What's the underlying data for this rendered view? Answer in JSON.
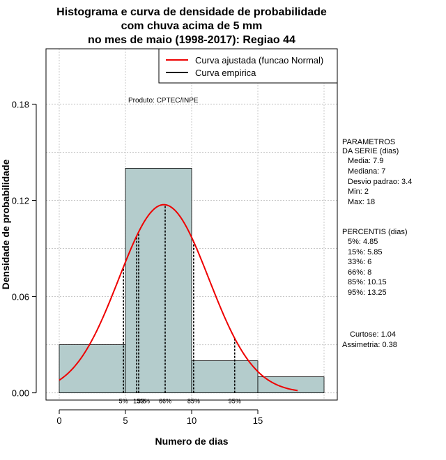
{
  "chart_data": {
    "type": "bar",
    "title_lines": [
      "Histograma e curva de densidade de probabilidade",
      "com chuva acima de 5 mm",
      "no mes de maio (1998-2017): Regiao 44"
    ],
    "xlabel": "Numero de dias",
    "ylabel": "Densidade de probabilidade",
    "xlim": [
      -1,
      21
    ],
    "ylim": [
      -0.0045,
      0.2145
    ],
    "x_ticks": [
      0,
      5,
      10,
      15
    ],
    "y_ticks": [
      0.0,
      0.06,
      0.12,
      0.18
    ],
    "y_tick_labels": [
      "0.00",
      "0.06",
      "0.12",
      "0.18"
    ],
    "grid": true,
    "bins": [
      {
        "from": 0,
        "to": 5,
        "density": 0.03
      },
      {
        "from": 5,
        "to": 10,
        "density": 0.14
      },
      {
        "from": 10,
        "to": 15,
        "density": 0.02
      },
      {
        "from": 15,
        "to": 20,
        "density": 0.01
      }
    ],
    "normal_fit": {
      "mean": 7.9,
      "sd": 3.4,
      "x_from": 0,
      "x_to": 18,
      "color": "#ee0000"
    },
    "percentile_lines": [
      {
        "label": "5%",
        "x": 4.85
      },
      {
        "label": "15%",
        "x": 5.85
      },
      {
        "label": "33%",
        "x": 6
      },
      {
        "label": "66%",
        "x": 8
      },
      {
        "label": "85%",
        "x": 10.15
      },
      {
        "label": "95%",
        "x": 13.25
      }
    ],
    "legend": [
      {
        "label": "Curva ajustada (funcao Normal)",
        "color": "#ee0000"
      },
      {
        "label": "Curva empirica",
        "color": "#000000"
      }
    ],
    "credit": "Produto: CPTEC/INPE",
    "bar_color": "#b4cccc"
  },
  "stats": {
    "params_title": [
      "PARAMETROS",
      "DA SERIE (dias)"
    ],
    "params": [
      "Media: 7.9",
      "Mediana: 7",
      "Desvio padrao: 3.4",
      "Min: 2",
      "Max: 18"
    ],
    "percentis_title": "PERCENTIS (dias)",
    "percentis": [
      "5%: 4.85",
      "15%: 5.85",
      "33%: 6",
      "66%: 8",
      "85%: 10.15",
      "95%: 13.25"
    ],
    "curtose": "Curtose: 1.04",
    "assimetria": "Assimetria: 0.38"
  }
}
